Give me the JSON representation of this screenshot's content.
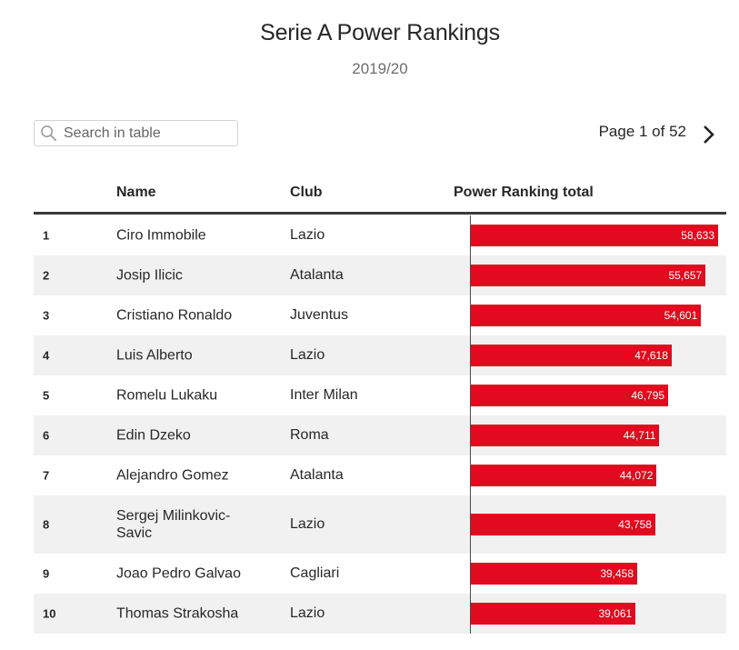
{
  "title": "Serie A Power Rankings",
  "subtitle": "2019/20",
  "search": {
    "placeholder": "Search in table",
    "icon": "search-icon"
  },
  "pagination": {
    "text": "Page 1 of 52",
    "next_icon": "chevron-right-icon"
  },
  "columns": {
    "rank": "",
    "name": "Name",
    "club": "Club",
    "total": "Power Ranking total"
  },
  "colors": {
    "bar": "#e10a1e",
    "stripe": "#f1f1f1",
    "text": "#272727"
  },
  "chart_data": {
    "type": "bar",
    "title": "Serie A Power Rankings",
    "subtitle": "2019/20",
    "orientation": "horizontal",
    "xlim": [
      0,
      58633
    ],
    "rows": [
      {
        "rank": "1",
        "name": "Ciro Immobile",
        "club": "Lazio",
        "value": 58633,
        "label": "58,633"
      },
      {
        "rank": "2",
        "name": "Josip Ilicic",
        "club": "Atalanta",
        "value": 55657,
        "label": "55,657"
      },
      {
        "rank": "3",
        "name": "Cristiano Ronaldo",
        "club": "Juventus",
        "value": 54601,
        "label": "54,601"
      },
      {
        "rank": "4",
        "name": "Luis Alberto",
        "club": "Lazio",
        "value": 47618,
        "label": "47,618"
      },
      {
        "rank": "5",
        "name": "Romelu Lukaku",
        "club": "Inter Milan",
        "value": 46795,
        "label": "46,795"
      },
      {
        "rank": "6",
        "name": "Edin Dzeko",
        "club": "Roma",
        "value": 44711,
        "label": "44,711"
      },
      {
        "rank": "7",
        "name": "Alejandro Gomez",
        "club": "Atalanta",
        "value": 44072,
        "label": "44,072"
      },
      {
        "rank": "8",
        "name": "Sergej Milinkovic-Savic",
        "club": "Lazio",
        "value": 43758,
        "label": "43,758"
      },
      {
        "rank": "9",
        "name": "Joao Pedro Galvao",
        "club": "Cagliari",
        "value": 39458,
        "label": "39,458"
      },
      {
        "rank": "10",
        "name": "Thomas Strakosha",
        "club": "Lazio",
        "value": 39061,
        "label": "39,061"
      }
    ]
  }
}
